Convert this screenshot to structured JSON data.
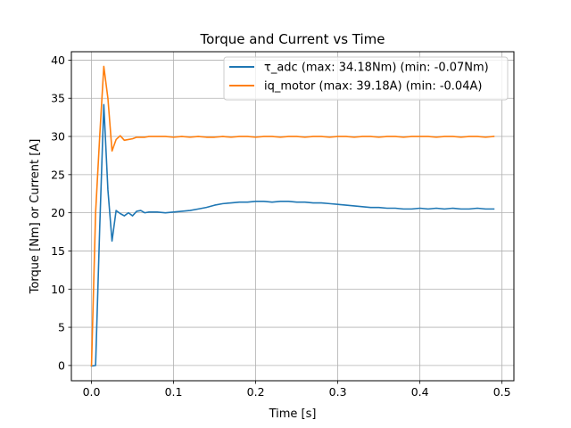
{
  "chart_data": {
    "type": "line",
    "title": "Torque and Current vs Time",
    "xlabel": "Time [s]",
    "ylabel": "Torque [Nm] or Current [A]",
    "xlim": [
      -0.0245,
      0.5145
    ],
    "ylim": [
      -2.0,
      41.1
    ],
    "xticks": [
      0.0,
      0.1,
      0.2,
      0.3,
      0.4,
      0.5
    ],
    "xtick_labels": [
      "0.0",
      "0.1",
      "0.2",
      "0.3",
      "0.4",
      "0.5"
    ],
    "yticks": [
      0,
      5,
      10,
      15,
      20,
      25,
      30,
      35,
      40
    ],
    "ytick_labels": [
      "0",
      "5",
      "10",
      "15",
      "20",
      "25",
      "30",
      "35",
      "40"
    ],
    "grid": true,
    "legend_position": "upper right",
    "series": [
      {
        "name": "τ_adc (max: 34.18Nm) (min: -0.07Nm)",
        "color": "#1f77b4",
        "x": [
          0.0,
          0.005,
          0.01,
          0.015,
          0.02,
          0.025,
          0.03,
          0.035,
          0.04,
          0.045,
          0.05,
          0.055,
          0.06,
          0.065,
          0.07,
          0.08,
          0.09,
          0.1,
          0.11,
          0.12,
          0.13,
          0.14,
          0.15,
          0.16,
          0.17,
          0.18,
          0.19,
          0.2,
          0.21,
          0.22,
          0.23,
          0.24,
          0.25,
          0.26,
          0.27,
          0.28,
          0.29,
          0.3,
          0.31,
          0.32,
          0.33,
          0.34,
          0.35,
          0.36,
          0.37,
          0.38,
          0.39,
          0.4,
          0.41,
          0.42,
          0.43,
          0.44,
          0.45,
          0.46,
          0.47,
          0.48,
          0.49
        ],
        "y": [
          -0.07,
          0.0,
          18.0,
          34.18,
          23.0,
          16.3,
          20.3,
          19.9,
          19.6,
          20.0,
          19.6,
          20.2,
          20.3,
          20.0,
          20.1,
          20.1,
          20.0,
          20.1,
          20.2,
          20.3,
          20.5,
          20.7,
          21.0,
          21.2,
          21.3,
          21.4,
          21.4,
          21.5,
          21.5,
          21.4,
          21.5,
          21.5,
          21.4,
          21.4,
          21.3,
          21.3,
          21.2,
          21.1,
          21.0,
          20.9,
          20.8,
          20.7,
          20.7,
          20.6,
          20.6,
          20.5,
          20.5,
          20.6,
          20.5,
          20.6,
          20.5,
          20.6,
          20.5,
          20.5,
          20.6,
          20.5,
          20.5
        ]
      },
      {
        "name": "iq_motor (max: 39.18A) (min: -0.04A)",
        "color": "#ff7f0e",
        "x": [
          0.0,
          0.005,
          0.01,
          0.015,
          0.02,
          0.025,
          0.03,
          0.035,
          0.04,
          0.045,
          0.05,
          0.055,
          0.06,
          0.065,
          0.07,
          0.075,
          0.08,
          0.09,
          0.1,
          0.11,
          0.12,
          0.13,
          0.14,
          0.15,
          0.16,
          0.17,
          0.18,
          0.19,
          0.2,
          0.21,
          0.22,
          0.23,
          0.24,
          0.25,
          0.26,
          0.27,
          0.28,
          0.29,
          0.3,
          0.31,
          0.32,
          0.33,
          0.34,
          0.35,
          0.36,
          0.37,
          0.38,
          0.39,
          0.4,
          0.41,
          0.42,
          0.43,
          0.44,
          0.45,
          0.46,
          0.47,
          0.48,
          0.49
        ],
        "y": [
          -0.04,
          20.0,
          30.0,
          39.18,
          35.0,
          28.1,
          29.6,
          30.1,
          29.5,
          29.6,
          29.7,
          29.9,
          29.9,
          29.9,
          30.0,
          30.0,
          30.0,
          30.0,
          29.9,
          30.0,
          29.9,
          30.0,
          29.9,
          29.9,
          30.0,
          29.9,
          30.0,
          30.0,
          29.9,
          30.0,
          30.0,
          29.9,
          30.0,
          30.0,
          29.9,
          30.0,
          30.0,
          29.9,
          30.0,
          30.0,
          29.9,
          30.0,
          30.0,
          29.9,
          30.0,
          30.0,
          29.9,
          30.0,
          30.0,
          30.0,
          29.9,
          30.0,
          30.0,
          29.9,
          30.0,
          30.0,
          29.9,
          30.0
        ]
      }
    ]
  }
}
